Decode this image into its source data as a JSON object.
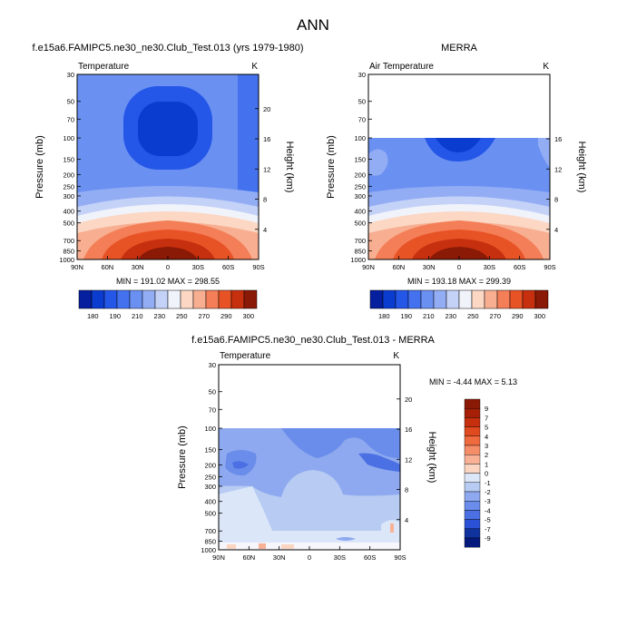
{
  "figure": {
    "title": "ANN"
  },
  "chart_data": [
    {
      "type": "heatmap",
      "title": "f.e15a6.FAMIPC5.ne30_ne30.Club_Test.013 (yrs 1979-1980)",
      "variable_label": "Temperature",
      "units": "K",
      "ylabel": "Pressure (mb)",
      "y2label": "Height (km)",
      "x_ticks": [
        "90N",
        "60N",
        "30N",
        "0",
        "30S",
        "60S",
        "90S"
      ],
      "y_ticks": [
        "30",
        "50",
        "70",
        "100",
        "150",
        "200",
        "250",
        "300",
        "400",
        "500",
        "700",
        "850",
        "1000"
      ],
      "height_ticks": [
        "20",
        "16",
        "12",
        "8",
        "4"
      ],
      "stats": "MIN = 191.02   MAX = 298.55",
      "contour_levels": [
        180,
        190,
        200,
        210,
        220,
        230,
        240,
        250,
        260,
        270,
        280,
        290,
        300
      ],
      "colorbar_labels": [
        "180",
        "190",
        "210",
        "230",
        "250",
        "270",
        "290",
        "300"
      ]
    },
    {
      "type": "heatmap",
      "title": "MERRA",
      "variable_label": "Air Temperature",
      "units": "K",
      "ylabel": "Pressure (mb)",
      "y2label": "Height (km)",
      "x_ticks": [
        "90N",
        "60N",
        "30N",
        "0",
        "30S",
        "60S",
        "90S"
      ],
      "y_ticks": [
        "30",
        "50",
        "70",
        "100",
        "150",
        "200",
        "250",
        "300",
        "400",
        "500",
        "700",
        "850",
        "1000"
      ],
      "height_ticks": [
        "16",
        "12",
        "8",
        "4"
      ],
      "stats": "MIN = 193.18   MAX = 299.39",
      "colorbar_labels": [
        "180",
        "190",
        "210",
        "230",
        "250",
        "270",
        "290",
        "300"
      ]
    },
    {
      "type": "heatmap",
      "title": "f.e15a6.FAMIPC5.ne30_ne30.Club_Test.013 - MERRA",
      "variable_label": "Temperature",
      "units": "K",
      "ylabel": "Pressure (mb)",
      "y2label": "Height (km)",
      "x_ticks": [
        "90N",
        "60N",
        "30N",
        "0",
        "30S",
        "60S",
        "90S"
      ],
      "y_ticks": [
        "30",
        "50",
        "70",
        "100",
        "150",
        "200",
        "250",
        "300",
        "400",
        "500",
        "700",
        "850",
        "1000"
      ],
      "height_ticks": [
        "20",
        "16",
        "12",
        "8",
        "4"
      ],
      "stats": "MIN =  -4.44   MAX =   5.13",
      "colorbar_labels": [
        "9",
        "7",
        "5",
        "4",
        "3",
        "2",
        "1",
        "0",
        "-1",
        "-2",
        "-3",
        "-4",
        "-5",
        "-7",
        "-9"
      ]
    }
  ],
  "colors": {
    "temperature_scale": [
      "#051f9e",
      "#0a3ccf",
      "#2456e8",
      "#4472ef",
      "#6a90f2",
      "#93adf5",
      "#c4d2f8",
      "#f1f3fb",
      "#fbd7c4",
      "#f8ae90",
      "#f37e57",
      "#e85326",
      "#c7300e",
      "#8a1906"
    ],
    "difference_scale": [
      "#8a1906",
      "#a62008",
      "#c7300e",
      "#e04a20",
      "#f06a3f",
      "#f58d68",
      "#f8b194",
      "#fbd5c2",
      "#dbe7f8",
      "#b7cbf3",
      "#8ea9ef",
      "#6a8deb",
      "#4a70e4",
      "#2b52d6",
      "#10329f",
      "#041a7d"
    ]
  }
}
